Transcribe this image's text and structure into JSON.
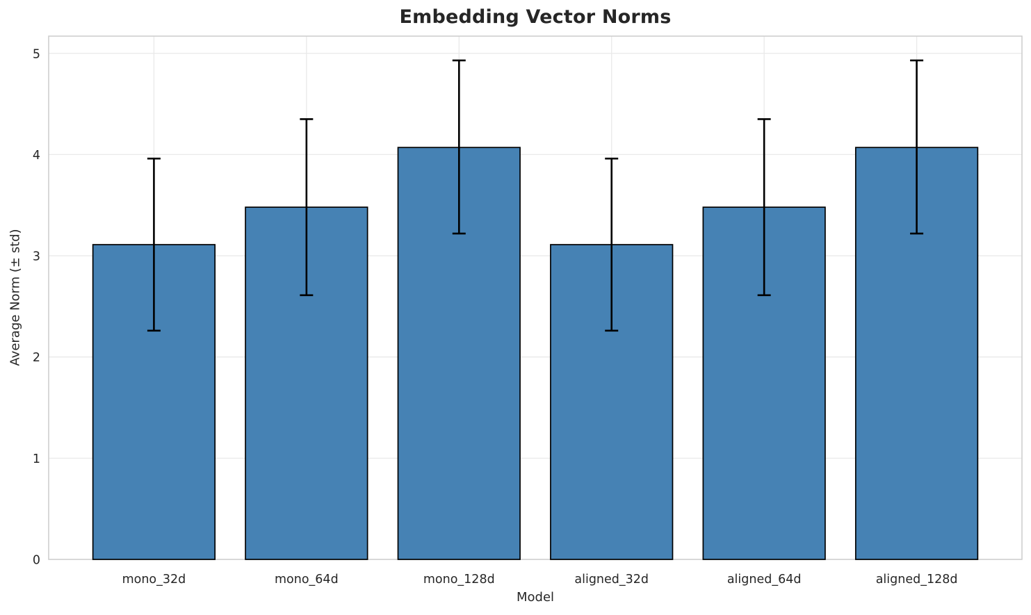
{
  "chart_data": {
    "type": "bar",
    "title": "Embedding Vector Norms",
    "xlabel": "Model",
    "ylabel": "Average Norm (± std)",
    "categories": [
      "mono_32d",
      "mono_64d",
      "mono_128d",
      "aligned_32d",
      "aligned_64d",
      "aligned_128d"
    ],
    "values": [
      3.11,
      3.48,
      4.07,
      3.11,
      3.48,
      4.07
    ],
    "errors": [
      0.85,
      0.87,
      0.85,
      0.85,
      0.87,
      0.85
    ],
    "error_low": [
      2.26,
      2.61,
      3.22,
      2.26,
      2.61,
      3.22
    ],
    "error_high": [
      3.96,
      4.35,
      4.93,
      3.96,
      4.35,
      4.93
    ],
    "yticks": [
      0,
      1,
      2,
      3,
      4,
      5
    ],
    "ylim": [
      0,
      5.17
    ],
    "grid": true,
    "legend": "none",
    "colors": {
      "bar_fill": "#4682B4",
      "bar_edge": "#000000",
      "error_bar": "#000000",
      "grid_line": "#e9e9e9",
      "spine": "#cccccc",
      "text": "#262626",
      "background": "#ffffff"
    }
  }
}
